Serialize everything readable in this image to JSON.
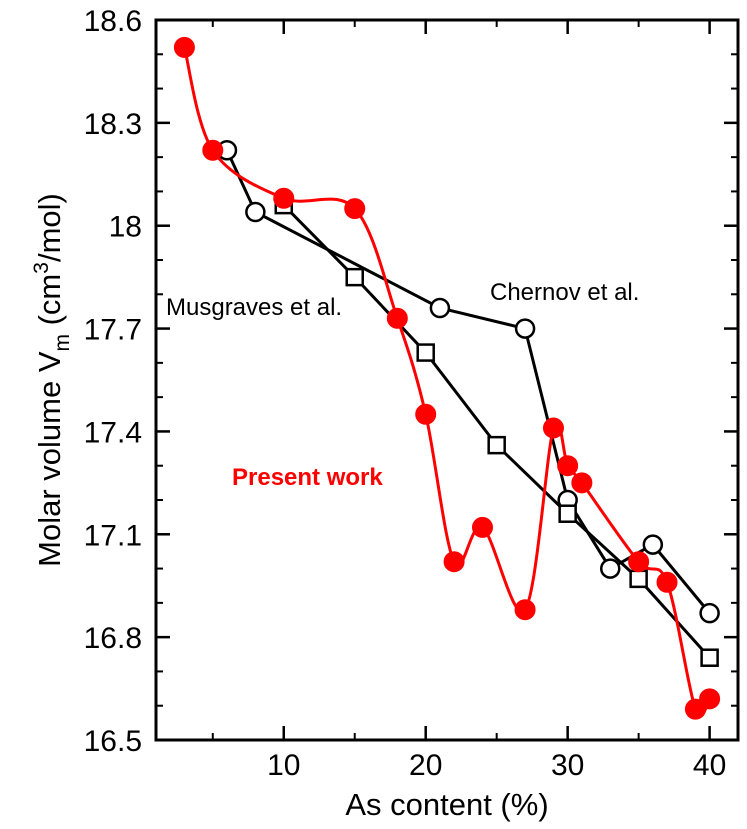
{
  "chart_data": {
    "type": "line",
    "xlabel": "As content (%)",
    "ylabel_main": "Molar volume V",
    "ylabel_sub": "m",
    "ylabel_unit_pre": " (cm",
    "ylabel_unit_sup": "3",
    "ylabel_unit_post": "/mol)",
    "xlim": [
      1,
      42
    ],
    "ylim": [
      16.5,
      18.6
    ],
    "xticks": [
      10,
      20,
      30,
      40
    ],
    "xtick_labels": [
      "10",
      "20",
      "30",
      "40"
    ],
    "yticks": [
      16.5,
      16.8,
      17.1,
      17.4,
      17.7,
      18.0,
      18.3,
      18.6
    ],
    "ytick_labels": [
      "16.5",
      "16.8",
      "17.1",
      "17.4",
      "17.7",
      "18",
      "18.3",
      "18.6"
    ],
    "grid": false,
    "annotations": [
      {
        "text": "Musgraves et al.",
        "series": "Musgraves et al."
      },
      {
        "text": "Chernov et al.",
        "series": "Chernov et al."
      },
      {
        "text": "Present work",
        "series": "Present work"
      }
    ],
    "series": [
      {
        "name": "Present work",
        "color": "#ff0000",
        "marker": "filled-circle",
        "smooth": true,
        "x": [
          3,
          5,
          10,
          15,
          18,
          20,
          22,
          24,
          27,
          29,
          30,
          31,
          35,
          37,
          39,
          40
        ],
        "y": [
          18.52,
          18.22,
          18.08,
          18.05,
          17.73,
          17.45,
          17.02,
          17.12,
          16.88,
          17.41,
          17.3,
          17.25,
          17.02,
          16.96,
          16.59,
          16.62
        ]
      },
      {
        "name": "Chernov et al.",
        "color": "#000000",
        "marker": "open-circle",
        "smooth": false,
        "x": [
          6,
          8,
          21,
          27,
          30,
          33,
          36,
          40
        ],
        "y": [
          18.22,
          18.04,
          17.76,
          17.7,
          17.2,
          17.0,
          17.07,
          16.87
        ]
      },
      {
        "name": "Musgraves et al.",
        "color": "#000000",
        "marker": "open-square",
        "smooth": false,
        "x": [
          10,
          15,
          20,
          25,
          30,
          35,
          40
        ],
        "y": [
          18.06,
          17.85,
          17.63,
          17.36,
          17.16,
          16.97,
          16.74
        ]
      }
    ]
  }
}
